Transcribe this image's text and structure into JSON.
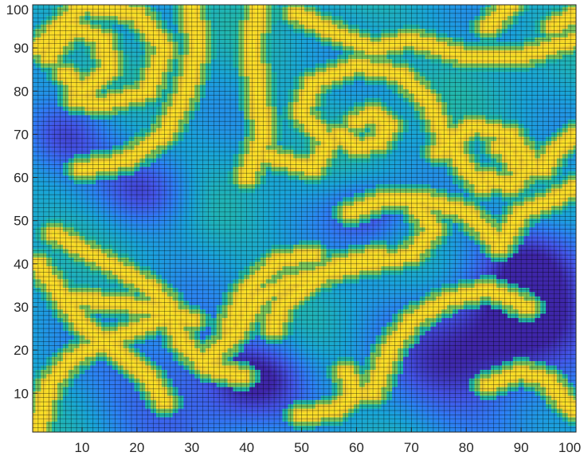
{
  "chart_data": {
    "type": "heatmap",
    "title": "",
    "xlabel": "",
    "ylabel": "",
    "xlim": [
      1,
      100
    ],
    "ylim": [
      1,
      100
    ],
    "x_ticks": [
      10,
      20,
      30,
      40,
      50,
      60,
      70,
      80,
      90,
      100
    ],
    "y_ticks": [
      10,
      20,
      30,
      40,
      50,
      60,
      70,
      80,
      90,
      100
    ],
    "grid_size": [
      100,
      100
    ],
    "mesh_lines": true,
    "colormap": [
      "#3e26a8",
      "#4356e8",
      "#2d80f4",
      "#19a4d9",
      "#23b9a8",
      "#7ec85a",
      "#d6b93f",
      "#f9d62a",
      "#f9f71f"
    ],
    "value_range": [
      0,
      1
    ],
    "description_of_field": "Spiral-wave pattern: thin yellow arcs (values near 1) on a blue field (values 0.3-0.5) with darker indigo basins (values near 0.1)",
    "yellow_bands": [
      {
        "points": [
          [
            4,
            88
          ],
          [
            8,
            95
          ],
          [
            14,
            92
          ],
          [
            15,
            85
          ],
          [
            10,
            80
          ],
          [
            7,
            84
          ]
        ]
      },
      {
        "points": [
          [
            2,
            90
          ],
          [
            10,
            100
          ],
          [
            20,
            98
          ],
          [
            25,
            90
          ],
          [
            22,
            80
          ],
          [
            14,
            77
          ],
          [
            9,
            78
          ]
        ]
      },
      {
        "points": [
          [
            10,
            62
          ],
          [
            18,
            64
          ],
          [
            25,
            70
          ],
          [
            29,
            80
          ],
          [
            31,
            90
          ],
          [
            30,
            100
          ]
        ]
      },
      {
        "points": [
          [
            40,
            60
          ],
          [
            43,
            70
          ],
          [
            42,
            80
          ],
          [
            41,
            90
          ],
          [
            42,
            100
          ]
        ]
      },
      {
        "points": [
          [
            44,
            65
          ],
          [
            52,
            62
          ],
          [
            55,
            68
          ],
          [
            50,
            75
          ],
          [
            52,
            82
          ],
          [
            60,
            86
          ],
          [
            68,
            84
          ],
          [
            73,
            78
          ],
          [
            76,
            70
          ],
          [
            80,
            62
          ],
          [
            83,
            58
          ]
        ]
      },
      {
        "points": [
          [
            60,
            73
          ],
          [
            63,
            75
          ],
          [
            66,
            72
          ],
          [
            64,
            68
          ],
          [
            60,
            67
          ],
          [
            57,
            70
          ]
        ]
      },
      {
        "points": [
          [
            49,
            98
          ],
          [
            57,
            93
          ],
          [
            63,
            90
          ],
          [
            70,
            92
          ],
          [
            80,
            88
          ],
          [
            90,
            88
          ],
          [
            100,
            92
          ]
        ]
      },
      {
        "points": [
          [
            75,
            66
          ],
          [
            81,
            72
          ],
          [
            88,
            70
          ],
          [
            92,
            63
          ],
          [
            88,
            58
          ],
          [
            84,
            60
          ]
        ]
      },
      {
        "points": [
          [
            86,
            67
          ],
          [
            88,
            66
          ],
          [
            89,
            63
          ]
        ]
      },
      {
        "points": [
          [
            59,
            52
          ],
          [
            65,
            55
          ],
          [
            72,
            55
          ],
          [
            80,
            52
          ],
          [
            85,
            46
          ]
        ]
      },
      {
        "points": [
          [
            70,
            55
          ],
          [
            74,
            48
          ],
          [
            70,
            42
          ],
          [
            62,
            40
          ],
          [
            55,
            38
          ],
          [
            48,
            36
          ],
          [
            42,
            32
          ],
          [
            38,
            24
          ],
          [
            33,
            18
          ]
        ]
      },
      {
        "points": [
          [
            45,
            25
          ],
          [
            46,
            30
          ],
          [
            51,
            35
          ],
          [
            57,
            40
          ],
          [
            64,
            42
          ]
        ]
      },
      {
        "points": [
          [
            37,
            26
          ],
          [
            40,
            34
          ],
          [
            46,
            41
          ],
          [
            52,
            42
          ]
        ]
      },
      {
        "points": [
          [
            5,
            47
          ],
          [
            12,
            42
          ],
          [
            18,
            38
          ],
          [
            23,
            34
          ],
          [
            26,
            30
          ],
          [
            28,
            22
          ],
          [
            33,
            16
          ],
          [
            39,
            14
          ]
        ]
      },
      {
        "points": [
          [
            8,
            32
          ],
          [
            17,
            31
          ],
          [
            25,
            29
          ],
          [
            30,
            27
          ]
        ]
      },
      {
        "points": [
          [
            2,
            40
          ],
          [
            6,
            33
          ],
          [
            10,
            26
          ],
          [
            16,
            20
          ],
          [
            22,
            14
          ],
          [
            25,
            8
          ]
        ]
      },
      {
        "points": [
          [
            2,
            2
          ],
          [
            4,
            12
          ],
          [
            8,
            18
          ],
          [
            14,
            22
          ],
          [
            20,
            25
          ],
          [
            26,
            28
          ]
        ]
      },
      {
        "points": [
          [
            50,
            5
          ],
          [
            56,
            6
          ],
          [
            60,
            10
          ],
          [
            58,
            15
          ]
        ]
      },
      {
        "points": [
          [
            63,
            10
          ],
          [
            66,
            20
          ],
          [
            70,
            27
          ],
          [
            77,
            32
          ],
          [
            84,
            34
          ],
          [
            88,
            32
          ],
          [
            91,
            30
          ]
        ]
      },
      {
        "points": [
          [
            84,
            12
          ],
          [
            90,
            15
          ],
          [
            95,
            13
          ],
          [
            98,
            8
          ],
          [
            100,
            6
          ]
        ]
      },
      {
        "points": [
          [
            86,
            44
          ],
          [
            90,
            52
          ],
          [
            96,
            55
          ],
          [
            100,
            58
          ]
        ]
      },
      {
        "points": [
          [
            94,
            62
          ],
          [
            96,
            66
          ],
          [
            100,
            70
          ]
        ]
      },
      {
        "points": [
          [
            84,
            95
          ],
          [
            88,
            100
          ]
        ]
      },
      {
        "points": [
          [
            96,
            95
          ],
          [
            100,
            98
          ]
        ]
      }
    ],
    "dark_basins": [
      {
        "center": [
          6,
          70
        ],
        "radius": 6
      },
      {
        "center": [
          28,
          12
        ],
        "radius": 11
      },
      {
        "center": [
          42,
          14
        ],
        "radius": 6
      },
      {
        "center": [
          80,
          17
        ],
        "radius": 12
      },
      {
        "center": [
          92,
          27
        ],
        "radius": 11
      },
      {
        "center": [
          93,
          42
        ],
        "radius": 7
      },
      {
        "center": [
          22,
          57
        ],
        "radius": 6
      },
      {
        "center": [
          62,
          52
        ],
        "radius": 5
      }
    ]
  }
}
